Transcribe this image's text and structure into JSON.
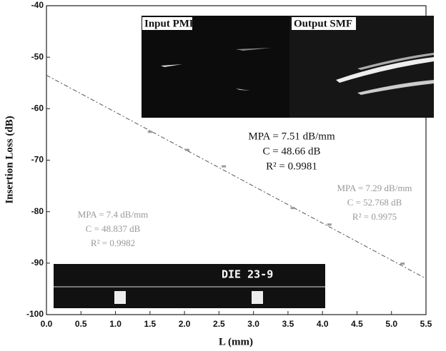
{
  "chart_data": {
    "type": "scatter",
    "xlabel": "L (mm)",
    "ylabel": "Insertion Loss (dB)",
    "xlim": [
      0,
      5.5
    ],
    "ylim": [
      -100,
      -40
    ],
    "xticks": [
      {
        "value": 0,
        "label": "0.0"
      },
      0.5,
      {
        "value": 1,
        "label": "1.0"
      },
      1.5,
      {
        "value": 2,
        "label": "2.0"
      },
      2.5,
      {
        "value": 3,
        "label": "3.0"
      },
      3.5,
      {
        "value": 4,
        "label": "4.0"
      },
      4.5,
      {
        "value": 5,
        "label": "5.0"
      },
      5.5
    ],
    "yticks": [
      -100,
      -90,
      -80,
      -70,
      -60,
      -50,
      -40
    ],
    "points": {
      "color": "#999999",
      "x": [
        1.5,
        2.04,
        2.57,
        3.57,
        4.1,
        5.16
      ],
      "values": [
        -64.5,
        -68,
        -71.2,
        -79.3,
        -82.5,
        -90.1
      ]
    },
    "fit_line": {
      "color": "#555555",
      "x": [
        0,
        5.5
      ],
      "values": [
        -53.5,
        -93
      ]
    },
    "annotations": {
      "center": [
        "MPA = 7.51 dB/mm",
        "C = 48.66 dB",
        "R² = 0.9981"
      ],
      "right": [
        "MPA = 7.29 dB/mm",
        "C = 52.768 dB",
        "R² = 0.9975"
      ],
      "left": [
        "MPA = 7.4 dB/mm",
        "C = 48.837 dB",
        "R² = 0.9982"
      ]
    },
    "inset_labels": [
      "Input PMF",
      "Output SMF",
      "DIE 23-9"
    ]
  }
}
